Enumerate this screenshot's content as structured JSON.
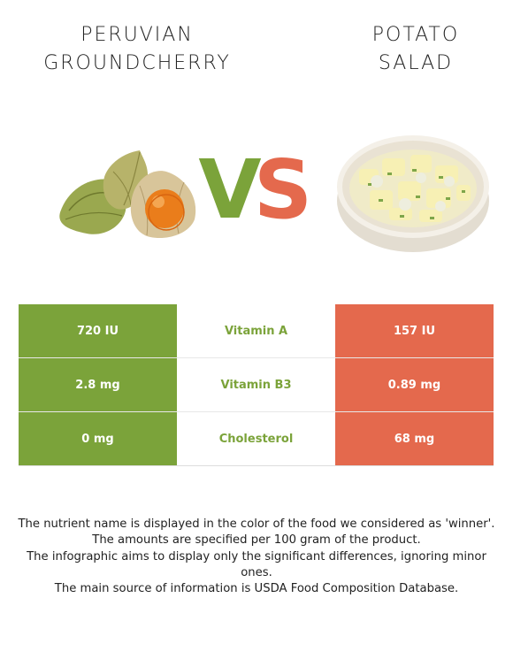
{
  "left_food": {
    "title_lines": [
      "PERUVIAN",
      "GROUNDCHERRY"
    ],
    "color": "#7ba33a"
  },
  "right_food": {
    "title_lines": [
      "POTATO",
      "SALAD"
    ],
    "color": "#e4694d"
  },
  "vs": {
    "v": "V",
    "s": "S"
  },
  "rows": [
    {
      "left": "720 IU",
      "nutrient": "Vitamin A",
      "right": "157 IU"
    },
    {
      "left": "2.8 mg",
      "nutrient": "Vitamin B3",
      "right": "0.89 mg"
    },
    {
      "left": "0 mg",
      "nutrient": "Cholesterol",
      "right": "68 mg"
    }
  ],
  "footer": [
    "The nutrient name is displayed in the color of the food we considered as 'winner'.",
    "The amounts are specified per 100 gram of the product.",
    "The infographic aims to display only the significant differences, ignoring minor ones.",
    "The main source of information is USDA Food Composition Database."
  ]
}
